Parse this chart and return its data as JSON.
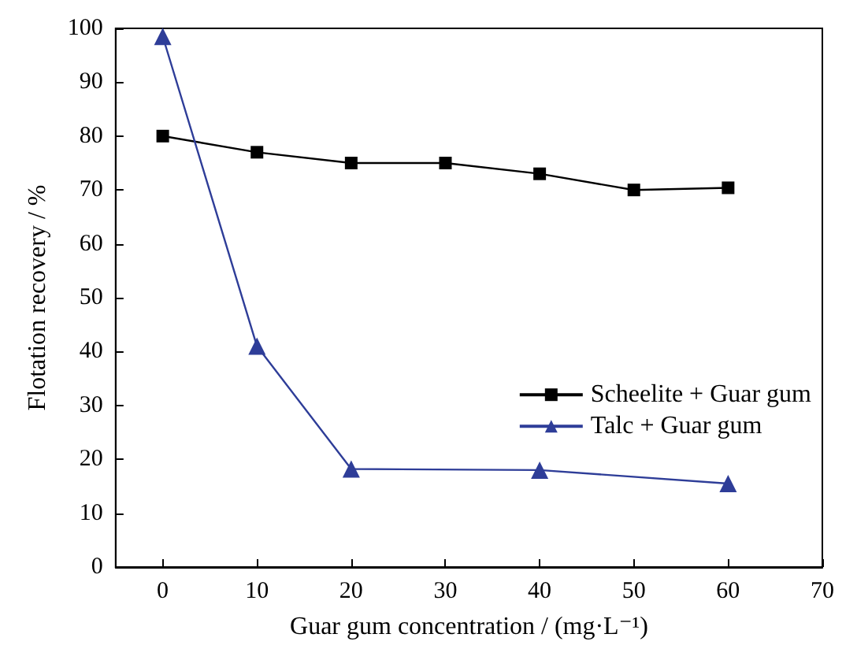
{
  "chart_data": {
    "type": "line",
    "xlabel": "Guar gum concentration / (mg·L⁻¹)",
    "ylabel": "Flotation recovery / %",
    "xlim": [
      -5,
      70
    ],
    "xticks": [
      0,
      10,
      20,
      30,
      40,
      50,
      60,
      70
    ],
    "ylim": [
      0,
      100
    ],
    "yticks": [
      0,
      10,
      20,
      30,
      40,
      50,
      60,
      70,
      80,
      90,
      100
    ],
    "grid": false,
    "legend": "right",
    "series": [
      {
        "name": "Scheelite + Guar gum",
        "color": "#000000",
        "marker": "square",
        "x": [
          0,
          10,
          20,
          30,
          40,
          50,
          60
        ],
        "values": [
          80,
          77,
          75,
          75,
          73,
          70,
          70.4
        ]
      },
      {
        "name": "Talc + Guar gum",
        "color": "#2e3d98",
        "marker": "triangle",
        "x": [
          0,
          10,
          20,
          40,
          60
        ],
        "values": [
          98.5,
          41,
          18.2,
          18,
          15.5
        ]
      }
    ]
  }
}
